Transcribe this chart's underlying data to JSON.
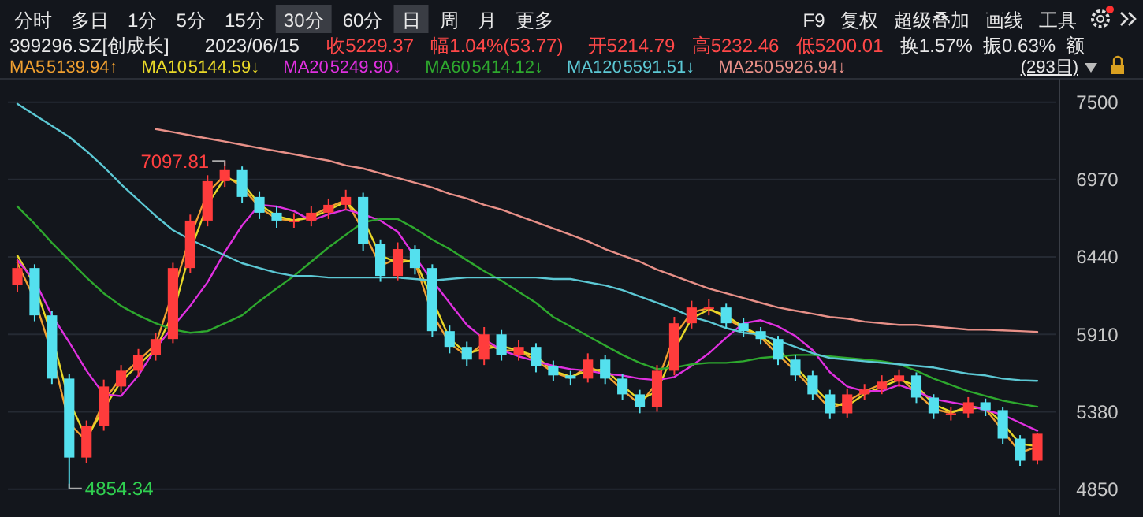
{
  "chart_data": {
    "type": "candlestick",
    "title": "399296.SZ[创成长]",
    "subtitle": "2023/06/15",
    "categories": [
      null,
      null,
      null,
      null,
      null,
      null,
      null,
      null,
      null,
      null,
      null,
      null,
      null,
      null,
      null,
      null,
      null,
      null,
      null,
      null,
      null,
      null,
      null,
      null,
      null,
      null,
      null,
      null,
      null,
      null,
      null,
      null,
      null,
      null,
      null,
      null,
      null,
      null,
      null,
      null,
      null,
      null,
      null,
      null,
      null,
      null,
      null,
      null,
      null,
      null,
      null,
      null,
      null,
      null,
      null,
      null,
      null,
      null,
      null,
      null
    ],
    "ohlc": [
      [
        6250,
        6420,
        6200,
        6364
      ],
      [
        6364,
        6390,
        6000,
        6040
      ],
      [
        6040,
        6070,
        5570,
        5607
      ],
      [
        5607,
        5640,
        4854.34,
        5066
      ],
      [
        5066,
        5320,
        5030,
        5283
      ],
      [
        5283,
        5600,
        5250,
        5553
      ],
      [
        5553,
        5700,
        5510,
        5661
      ],
      [
        5661,
        5810,
        5620,
        5769
      ],
      [
        5769,
        5920,
        5730,
        5878
      ],
      [
        5878,
        6400,
        5850,
        6364
      ],
      [
        6364,
        6730,
        6330,
        6689
      ],
      [
        6689,
        7000,
        6650,
        6959
      ],
      [
        6959,
        7097.81,
        6920,
        7035
      ],
      [
        7035,
        7060,
        6810,
        6851
      ],
      [
        6851,
        6890,
        6700,
        6743
      ],
      [
        6743,
        6790,
        6640,
        6689
      ],
      [
        6689,
        6740,
        6640,
        6689
      ],
      [
        6689,
        6790,
        6650,
        6743
      ],
      [
        6743,
        6840,
        6700,
        6797
      ],
      [
        6797,
        6900,
        6760,
        6851
      ],
      [
        6851,
        6880,
        6480,
        6527
      ],
      [
        6527,
        6560,
        6270,
        6310
      ],
      [
        6310,
        6540,
        6280,
        6494
      ],
      [
        6494,
        6520,
        6320,
        6364
      ],
      [
        6364,
        6390,
        5890,
        5932
      ],
      [
        5932,
        5970,
        5780,
        5824
      ],
      [
        5824,
        5860,
        5690,
        5737
      ],
      [
        5737,
        5960,
        5700,
        5910
      ],
      [
        5910,
        5940,
        5730,
        5769
      ],
      [
        5769,
        5870,
        5730,
        5824
      ],
      [
        5824,
        5850,
        5650,
        5694
      ],
      [
        5694,
        5730,
        5590,
        5629
      ],
      [
        5629,
        5660,
        5560,
        5607
      ],
      [
        5607,
        5780,
        5580,
        5737
      ],
      [
        5737,
        5770,
        5570,
        5607
      ],
      [
        5607,
        5640,
        5460,
        5499
      ],
      [
        5499,
        5530,
        5370,
        5413
      ],
      [
        5413,
        5700,
        5380,
        5661
      ],
      [
        5661,
        6030,
        5630,
        5986
      ],
      [
        5986,
        6140,
        5950,
        6094
      ],
      [
        6094,
        6150,
        6040,
        6094
      ],
      [
        6094,
        6120,
        5950,
        5986
      ],
      [
        5986,
        6020,
        5890,
        5932
      ],
      [
        5932,
        5960,
        5840,
        5878
      ],
      [
        5878,
        5900,
        5700,
        5737
      ],
      [
        5737,
        5770,
        5590,
        5629
      ],
      [
        5629,
        5660,
        5460,
        5499
      ],
      [
        5499,
        5530,
        5330,
        5369
      ],
      [
        5369,
        5540,
        5340,
        5499
      ],
      [
        5499,
        5570,
        5460,
        5532
      ],
      [
        5532,
        5630,
        5500,
        5586
      ],
      [
        5586,
        5670,
        5550,
        5629
      ],
      [
        5629,
        5650,
        5440,
        5477
      ],
      [
        5477,
        5500,
        5330,
        5369
      ],
      [
        5369,
        5410,
        5320,
        5369
      ],
      [
        5369,
        5480,
        5340,
        5445
      ],
      [
        5445,
        5470,
        5350,
        5391
      ],
      [
        5391,
        5410,
        5160,
        5196
      ],
      [
        5196,
        5220,
        5010,
        5045
      ],
      [
        5045,
        5232.46,
        5020,
        5229.37
      ]
    ],
    "series": [
      {
        "type": "line",
        "name": "MA5",
        "color": "#f0a030",
        "values": [
          6400,
          6150,
          5780,
          5300,
          5180,
          5450,
          5620,
          5730,
          5840,
          6200,
          6580,
          6880,
          7000,
          6920,
          6780,
          6700,
          6690,
          6720,
          6780,
          6830,
          6620,
          6380,
          6430,
          6400,
          6050,
          5850,
          5760,
          5850,
          5800,
          5800,
          5730,
          5650,
          5610,
          5690,
          5640,
          5530,
          5430,
          5580,
          5900,
          6060,
          6090,
          6020,
          5950,
          5890,
          5770,
          5660,
          5530,
          5400,
          5450,
          5520,
          5570,
          5620,
          5510,
          5400,
          5370,
          5420,
          5400,
          5250,
          5100,
          5139.94
        ]
      },
      {
        "type": "line",
        "name": "MA10",
        "color": "#e8d828",
        "values": [
          6450,
          6250,
          5900,
          5450,
          5200,
          5400,
          5590,
          5700,
          5810,
          6050,
          6480,
          6800,
          6980,
          6950,
          6800,
          6720,
          6690,
          6710,
          6760,
          6820,
          6700,
          6450,
          6400,
          6420,
          6150,
          5880,
          5780,
          5810,
          5830,
          5800,
          5760,
          5660,
          5620,
          5660,
          5670,
          5560,
          5460,
          5520,
          5800,
          6020,
          6080,
          6040,
          5960,
          5900,
          5810,
          5690,
          5560,
          5440,
          5420,
          5500,
          5550,
          5600,
          5560,
          5430,
          5380,
          5400,
          5410,
          5300,
          5160,
          5144.59
        ]
      },
      {
        "type": "line",
        "name": "MA20",
        "color": "#e030e0",
        "values": [
          6418,
          6278,
          6040,
          5856,
          5661,
          5499,
          5488,
          5629,
          5813,
          5964,
          6105,
          6267,
          6473,
          6656,
          6797,
          6786,
          6754,
          6689,
          6732,
          6765,
          6732,
          6689,
          6613,
          6440,
          6278,
          6126,
          5975,
          5878,
          5802,
          5759,
          5726,
          5694,
          5672,
          5661,
          5640,
          5629,
          5607,
          5596,
          5618,
          5694,
          5780,
          5888,
          5986,
          6007,
          5964,
          5899,
          5802,
          5651,
          5553,
          5521,
          5521,
          5564,
          5521,
          5467,
          5445,
          5424,
          5391,
          5359,
          5304,
          5249.9
        ]
      },
      {
        "type": "line",
        "name": "MA60",
        "color": "#2ea82e",
        "values": [
          6786,
          6667,
          6537,
          6418,
          6299,
          6191,
          6105,
          6040,
          5986,
          5943,
          5921,
          5932,
          5986,
          6040,
          6137,
          6224,
          6310,
          6408,
          6505,
          6592,
          6678,
          6700,
          6700,
          6635,
          6559,
          6494,
          6418,
          6343,
          6278,
          6202,
          6126,
          6029,
          5964,
          5899,
          5834,
          5769,
          5715,
          5672,
          5683,
          5705,
          5715,
          5715,
          5726,
          5748,
          5759,
          5769,
          5769,
          5759,
          5748,
          5737,
          5726,
          5705,
          5661,
          5607,
          5564,
          5521,
          5488,
          5456,
          5434,
          5414.12
        ]
      },
      {
        "type": "line",
        "name": "MA120",
        "color": "#5cc8d4",
        "values": [
          7489,
          7413,
          7338,
          7262,
          7165,
          7057,
          6938,
          6829,
          6721,
          6624,
          6559,
          6505,
          6451,
          6397,
          6364,
          6332,
          6310,
          6310,
          6299,
          6299,
          6299,
          6299,
          6299,
          6289,
          6278,
          6289,
          6299,
          6299,
          6299,
          6299,
          6299,
          6289,
          6289,
          6267,
          6245,
          6213,
          6170,
          6126,
          6083,
          6029,
          5997,
          5953,
          5921,
          5910,
          5867,
          5824,
          5781,
          5748,
          5737,
          5726,
          5716,
          5705,
          5694,
          5683,
          5661,
          5640,
          5629,
          5607,
          5596,
          5591.51
        ]
      },
      {
        "type": "line",
        "name": "MA250",
        "color": "#e89088",
        "values": [
          null,
          null,
          null,
          null,
          null,
          null,
          null,
          null,
          7316,
          7295,
          7273,
          7251,
          7230,
          7208,
          7186,
          7165,
          7143,
          7121,
          7100,
          7067,
          7046,
          7013,
          6981,
          6948,
          6916,
          6873,
          6840,
          6797,
          6765,
          6721,
          6678,
          6635,
          6592,
          6548,
          6494,
          6451,
          6408,
          6353,
          6310,
          6267,
          6224,
          6191,
          6159,
          6126,
          6094,
          6072,
          6051,
          6029,
          6018,
          5997,
          5986,
          5975,
          5975,
          5964,
          5953,
          5942,
          5942,
          5937,
          5932,
          5926.94
        ]
      }
    ],
    "ylim": [
      4670,
      7660
    ],
    "yticks": [
      4850,
      5380,
      5910,
      6440,
      6970,
      7500
    ],
    "grid": "y",
    "legend": "top left",
    "annotations": [
      "7097.81",
      "4854.34",
      "分时",
      "多日",
      "1分",
      "5分",
      "15分",
      "30分",
      "60分",
      "日",
      "周",
      "月",
      "更多",
      "F9",
      "复权",
      "超级叠加",
      "画线",
      "工具",
      "收5229.37",
      "幅1.04%(53.77)",
      "开5214.79",
      "高5232.46",
      "低5200.01",
      "换1.57%",
      "振0.63%",
      "额",
      "(293日)",
      "5139.94↑",
      "5144.59↓",
      "5249.90↓",
      "5414.12↓",
      "5591.51↓",
      "5926.94↓"
    ]
  }
}
